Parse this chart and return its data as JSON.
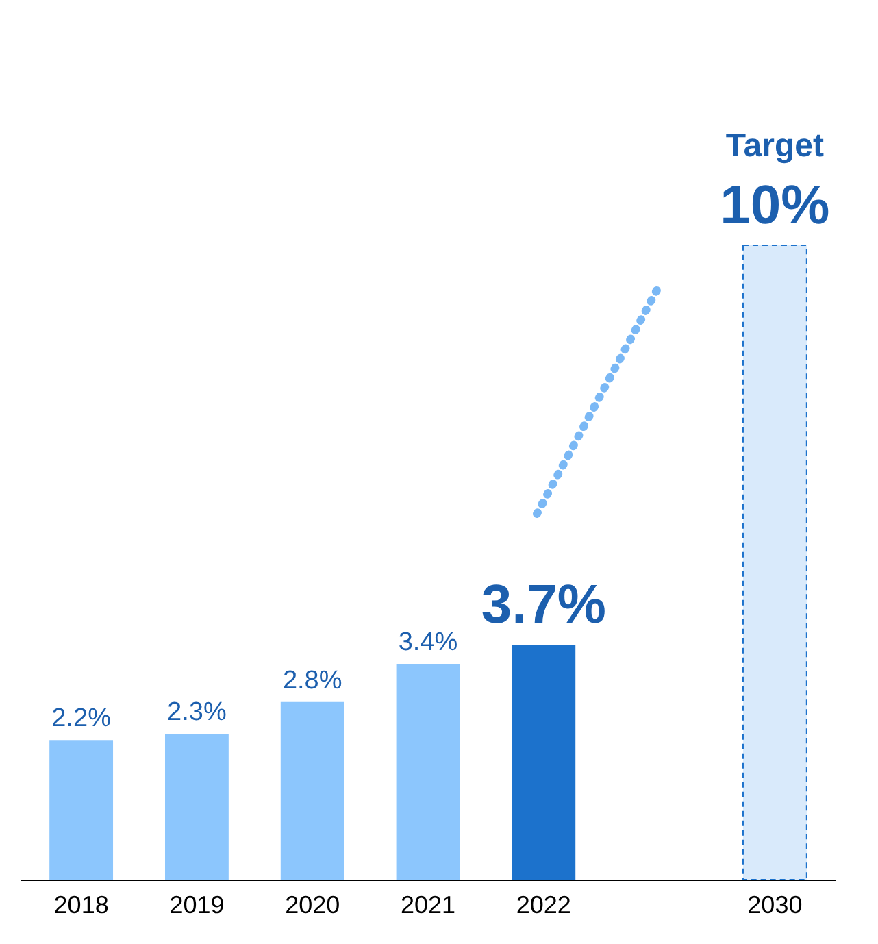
{
  "chart_data": {
    "type": "bar",
    "categories": [
      "2018",
      "2019",
      "2020",
      "2021",
      "2022",
      "2030"
    ],
    "values": [
      2.2,
      2.3,
      2.8,
      3.4,
      3.7,
      10
    ],
    "colors": [
      "#8cc6fd",
      "#8cc6fd",
      "#8cc6fd",
      "#8cc6fd",
      "#1c72cc",
      "#d9eafb"
    ],
    "value_labels": [
      "2.2%",
      "2.3%",
      "2.8%",
      "3.4%",
      "3.7%",
      "10%"
    ],
    "annotations": [
      "Target"
    ],
    "grid": false
  }
}
